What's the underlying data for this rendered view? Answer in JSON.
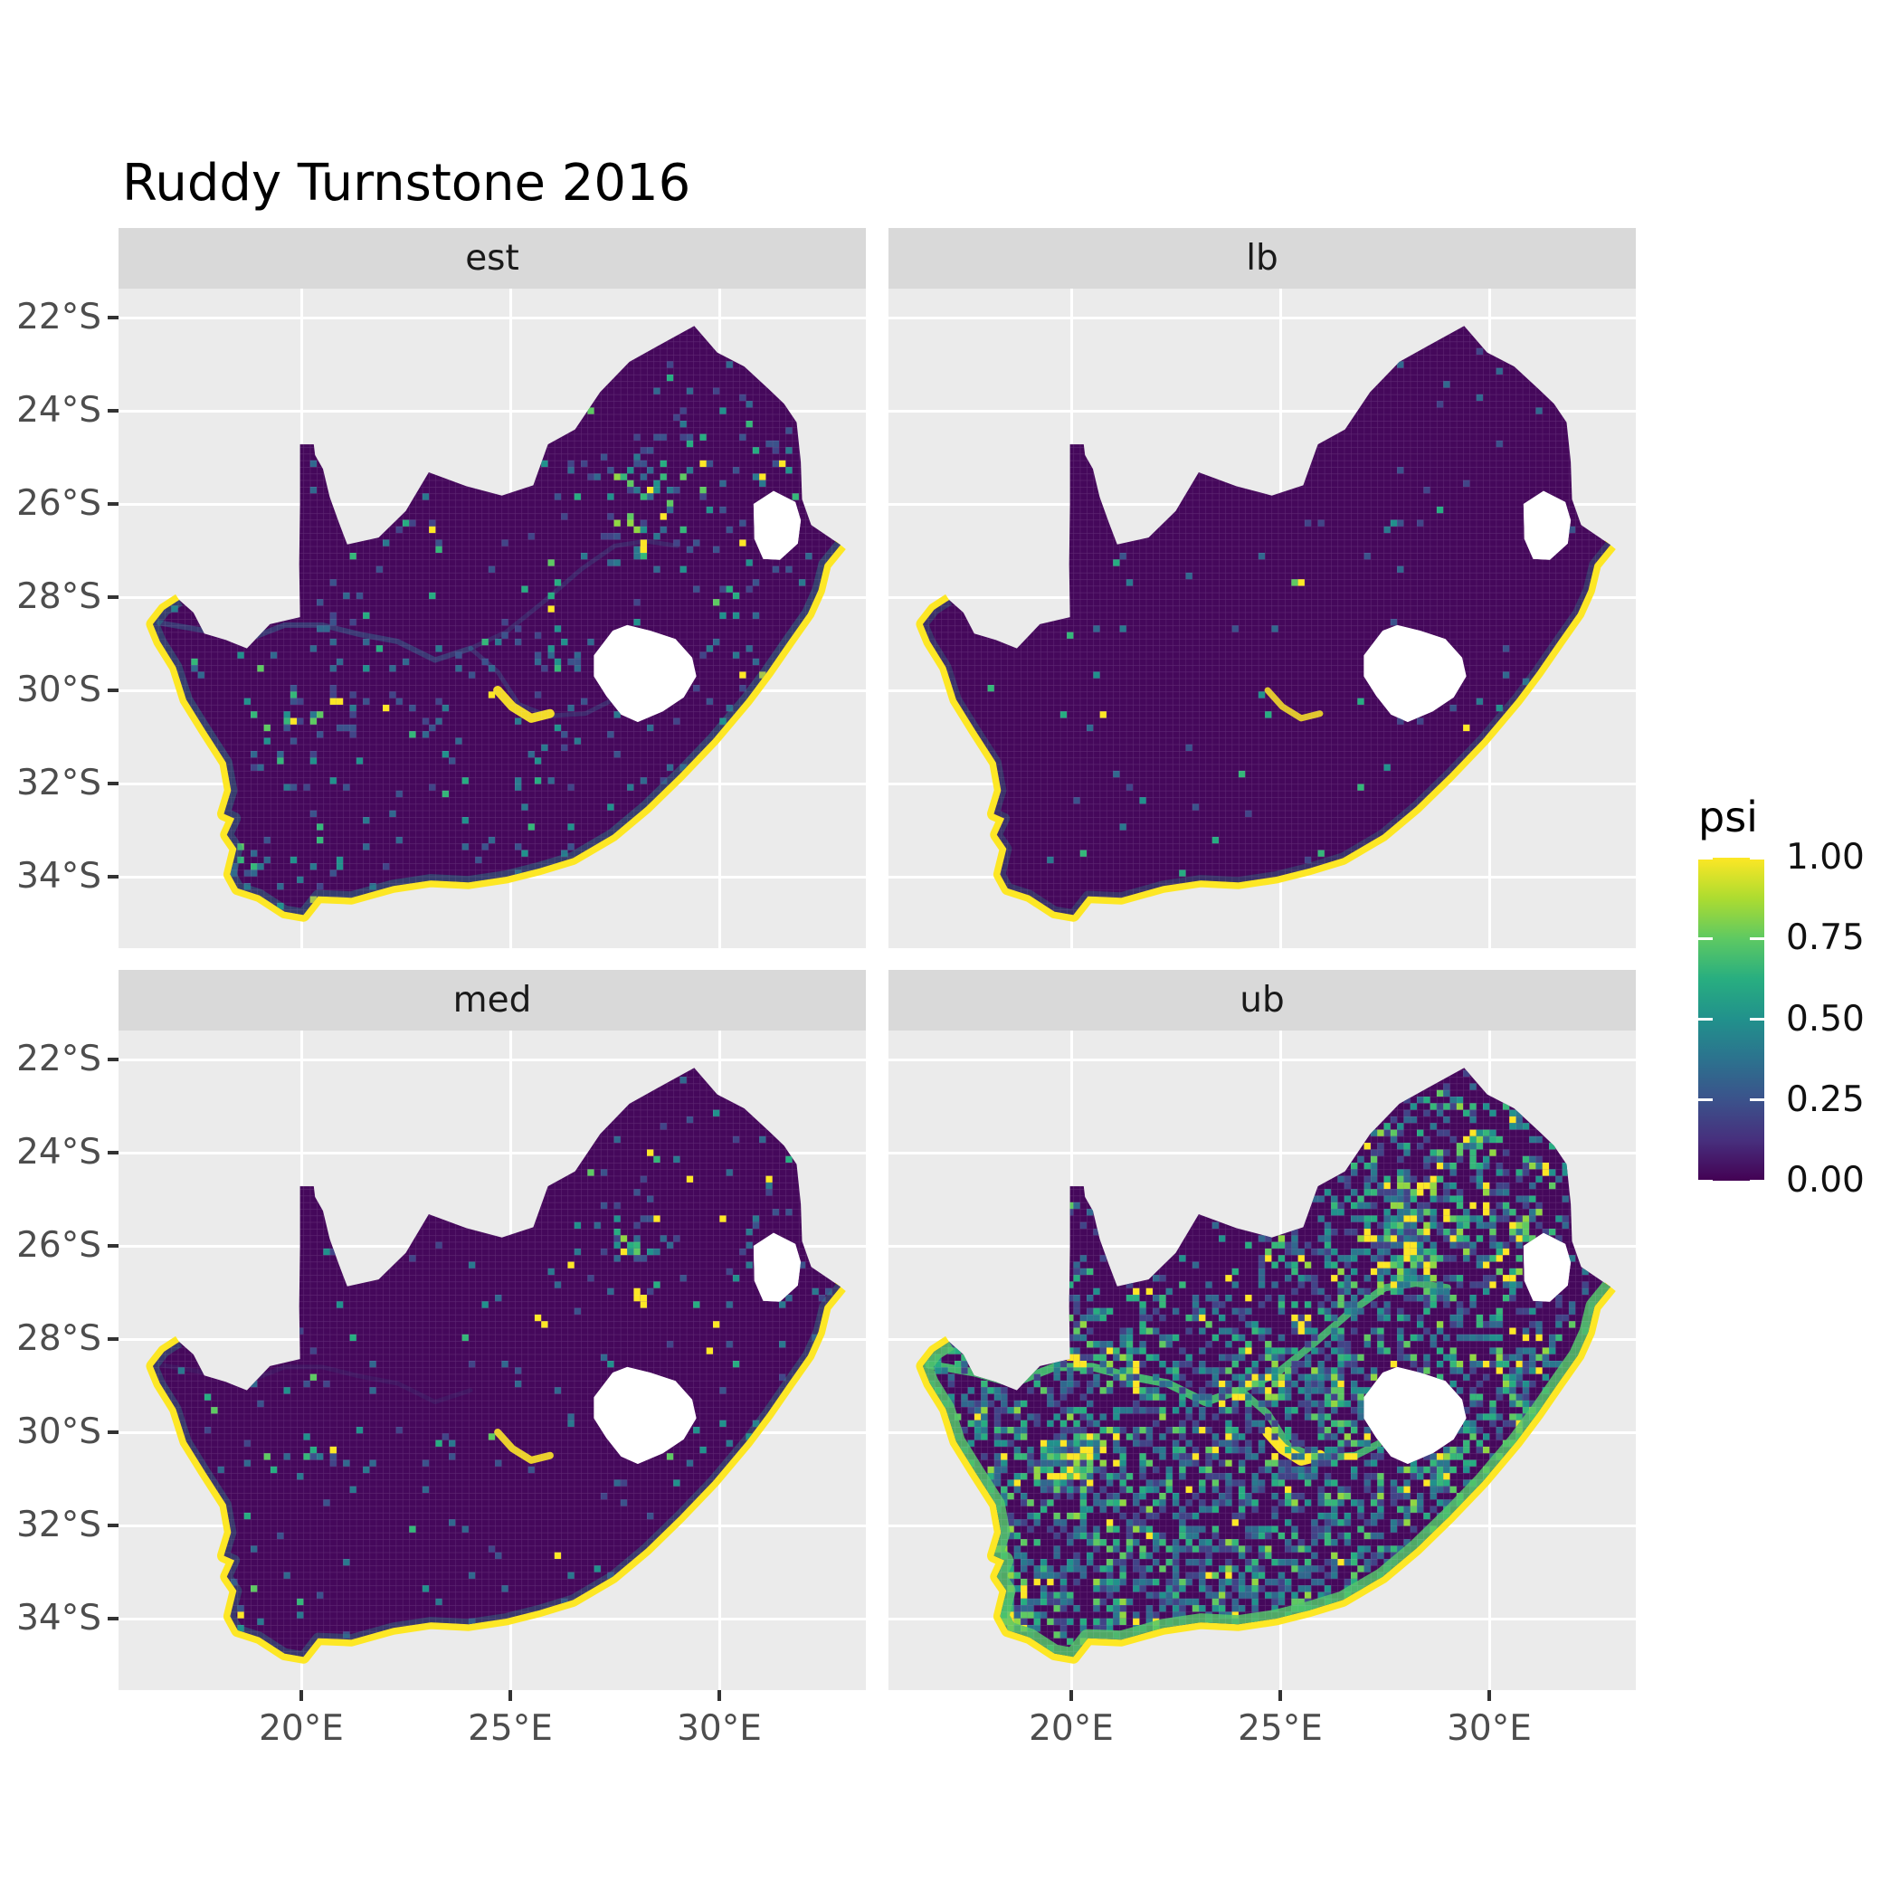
{
  "chart_data": {
    "type": "heatmap",
    "title": "Ruddy Turnstone 2016",
    "subtitle": "",
    "facets": [
      "est",
      "lb",
      "med",
      "ub"
    ],
    "variable": "psi",
    "scale": {
      "name": "viridis",
      "limits": [
        0,
        1
      ],
      "breaks": [
        1.0,
        0.75,
        0.5,
        0.25,
        0.0
      ],
      "break_labels": [
        "1.00",
        "0.75",
        "0.50",
        "0.25",
        "0.00"
      ],
      "legend_position": "right"
    },
    "x_axis": {
      "label": "",
      "tick_labels": [
        "20°E",
        "25°E",
        "30°E"
      ],
      "tick_values_deg_east": [
        20,
        25,
        30
      ],
      "range_deg_east": [
        15.63,
        33.5
      ]
    },
    "y_axis": {
      "label": "",
      "tick_labels": [
        "22°S",
        "24°S",
        "26°S",
        "28°S",
        "30°S",
        "32°S",
        "34°S"
      ],
      "tick_values_deg_south": [
        22,
        24,
        26,
        28,
        30,
        32,
        34
      ],
      "range_deg_south": [
        21.38,
        35.53
      ]
    },
    "grid": "major white gridlines on gray panels",
    "facet_summary": {
      "est": "mostly psi≈0 (dark purple) with scattered low-mid values, hotspots near Gauteng, Calvinia, coasts; yellow (psi≈1) coastline",
      "lb": "lower bound: almost entirely psi≈0, yellow coastline, very few nonzero cells",
      "med": "median: mostly psi≈0, sparse scattered cells, small yellow clusters in northeast, yellow coastline",
      "ub": "upper bound: dense scattered low-mid psi over most of country, bright river traces (Orange/Vaal), many yellow patches, yellow coastline"
    }
  },
  "ui": {
    "title": "Ruddy Turnstone 2016",
    "strip_labels": [
      "est",
      "lb",
      "med",
      "ub"
    ],
    "legend_title": "psi",
    "legend_labels": [
      "1.00",
      "0.75",
      "0.50",
      "0.25",
      "0.00"
    ],
    "legend_values": [
      1,
      0.75,
      0.5,
      0.25,
      0
    ],
    "y_tick_labels": [
      "22°S",
      "24°S",
      "26°S",
      "28°S",
      "30°S",
      "32°S",
      "34°S"
    ],
    "x_tick_labels": [
      "20°E",
      "25°E",
      "30°E"
    ]
  },
  "colors": {
    "background": "#ffffff",
    "panel_bg": "#ebebeb",
    "strip_bg": "#d9d9d9",
    "strip_text": "#1a1a1a",
    "gridline": "#ffffff",
    "axis_text": "#4d4d4d",
    "tick_mark": "#333333",
    "map_base": "#45085b",
    "coast": "#fde725",
    "hole_fill": "#ffffff",
    "cell_grid": "rgba(228,212,240,0.16)",
    "viridis_stops": [
      "#440154",
      "#3b528b",
      "#21918c",
      "#5ec962",
      "#fde725"
    ]
  },
  "palettes": {
    "std": [
      [
        "#414487",
        0.22
      ],
      [
        "#3b528b",
        0.2
      ],
      [
        "#31688e",
        0.2
      ],
      [
        "#2a788e",
        0.12
      ],
      [
        "#21918c",
        0.1
      ],
      [
        "#27ad81",
        0.06
      ],
      [
        "#35b779",
        0.05
      ],
      [
        "#5ec962",
        0.03
      ],
      [
        "#fde725",
        0.02
      ]
    ],
    "ub": [
      [
        "#414487",
        0.25
      ],
      [
        "#31688e",
        0.22
      ],
      [
        "#2a788e",
        0.16
      ],
      [
        "#21918c",
        0.12
      ],
      [
        "#27ad81",
        0.08
      ],
      [
        "#35b779",
        0.07
      ],
      [
        "#5ec962",
        0.04
      ],
      [
        "#90d743",
        0.03
      ],
      [
        "#fde725",
        0.03
      ]
    ],
    "hot": [
      [
        "#fde725",
        0.35
      ],
      [
        "#90d743",
        0.15
      ],
      [
        "#5ec962",
        0.2
      ],
      [
        "#35b779",
        0.2
      ],
      [
        "#21918c",
        0.1
      ]
    ]
  },
  "map": {
    "outline": [
      [
        17.08,
        -28.06
      ],
      [
        16.72,
        -28.27
      ],
      [
        16.45,
        -28.58
      ],
      [
        16.62,
        -28.95
      ],
      [
        17.0,
        -29.5
      ],
      [
        17.25,
        -30.2
      ],
      [
        17.7,
        -30.85
      ],
      [
        18.2,
        -31.55
      ],
      [
        18.32,
        -32.15
      ],
      [
        18.15,
        -32.65
      ],
      [
        18.4,
        -32.75
      ],
      [
        18.22,
        -33.1
      ],
      [
        18.45,
        -33.4
      ],
      [
        18.3,
        -33.95
      ],
      [
        18.48,
        -34.25
      ],
      [
        19.0,
        -34.4
      ],
      [
        19.6,
        -34.75
      ],
      [
        20.05,
        -34.82
      ],
      [
        20.4,
        -34.42
      ],
      [
        21.2,
        -34.45
      ],
      [
        22.2,
        -34.2
      ],
      [
        23.1,
        -34.08
      ],
      [
        24.0,
        -34.12
      ],
      [
        24.9,
        -34.0
      ],
      [
        25.7,
        -33.82
      ],
      [
        26.5,
        -33.6
      ],
      [
        27.45,
        -33.1
      ],
      [
        28.25,
        -32.5
      ],
      [
        29.05,
        -31.8
      ],
      [
        29.85,
        -31.05
      ],
      [
        30.65,
        -30.2
      ],
      [
        31.15,
        -29.6
      ],
      [
        31.65,
        -28.95
      ],
      [
        32.12,
        -28.35
      ],
      [
        32.37,
        -27.85
      ],
      [
        32.52,
        -27.3
      ],
      [
        32.9,
        -26.88
      ],
      [
        32.2,
        -26.45
      ],
      [
        31.98,
        -25.9
      ],
      [
        31.95,
        -25.1
      ],
      [
        31.85,
        -24.25
      ],
      [
        31.55,
        -23.85
      ],
      [
        31.2,
        -23.55
      ],
      [
        30.6,
        -23.05
      ],
      [
        29.95,
        -22.75
      ],
      [
        29.4,
        -22.18
      ],
      [
        28.55,
        -22.6
      ],
      [
        27.85,
        -22.95
      ],
      [
        27.15,
        -23.6
      ],
      [
        26.55,
        -24.4
      ],
      [
        25.9,
        -24.72
      ],
      [
        25.55,
        -25.6
      ],
      [
        24.8,
        -25.82
      ],
      [
        23.95,
        -25.62
      ],
      [
        23.05,
        -25.32
      ],
      [
        22.5,
        -26.15
      ],
      [
        21.85,
        -26.72
      ],
      [
        21.1,
        -26.87
      ],
      [
        20.9,
        -26.4
      ],
      [
        20.68,
        -25.85
      ],
      [
        20.52,
        -25.25
      ],
      [
        20.33,
        -24.95
      ],
      [
        20.3,
        -24.72
      ],
      [
        19.97,
        -24.72
      ],
      [
        19.97,
        -26.0
      ],
      [
        19.95,
        -27.3
      ],
      [
        19.97,
        -28.43
      ],
      [
        19.25,
        -28.58
      ],
      [
        18.7,
        -29.1
      ],
      [
        18.2,
        -28.92
      ],
      [
        17.68,
        -28.78
      ],
      [
        17.42,
        -28.33
      ]
    ],
    "coast_end_index": 36,
    "holes": {
      "lesotho": [
        [
          27.0,
          -29.25
        ],
        [
          27.45,
          -28.72
        ],
        [
          27.8,
          -28.6
        ],
        [
          28.35,
          -28.72
        ],
        [
          28.95,
          -28.9
        ],
        [
          29.35,
          -29.3
        ],
        [
          29.45,
          -29.7
        ],
        [
          29.15,
          -30.15
        ],
        [
          28.65,
          -30.45
        ],
        [
          28.05,
          -30.68
        ],
        [
          27.65,
          -30.52
        ],
        [
          27.3,
          -30.12
        ],
        [
          27.0,
          -29.7
        ]
      ],
      "eswatini": [
        [
          30.82,
          -26.0
        ],
        [
          31.3,
          -25.72
        ],
        [
          31.82,
          -25.96
        ],
        [
          31.95,
          -26.35
        ],
        [
          31.88,
          -26.85
        ],
        [
          31.45,
          -27.2
        ],
        [
          31.05,
          -27.18
        ],
        [
          30.84,
          -26.75
        ]
      ]
    },
    "rivers": {
      "west": [
        [
          16.6,
          -28.55
        ],
        [
          17.7,
          -28.72
        ],
        [
          18.6,
          -28.95
        ],
        [
          19.6,
          -28.6
        ],
        [
          20.5,
          -28.6
        ],
        [
          21.4,
          -28.8
        ],
        [
          22.3,
          -28.95
        ],
        [
          23.2,
          -29.35
        ],
        [
          24.05,
          -29.1
        ]
      ],
      "vaal": [
        [
          24.05,
          -29.1
        ],
        [
          24.9,
          -28.75
        ],
        [
          25.8,
          -28.1
        ],
        [
          26.7,
          -27.4
        ],
        [
          27.5,
          -26.9
        ],
        [
          28.25,
          -26.8
        ],
        [
          29.0,
          -26.9
        ]
      ],
      "upper": [
        [
          24.05,
          -29.1
        ],
        [
          24.7,
          -29.6
        ],
        [
          25.2,
          -30.3
        ],
        [
          25.9,
          -30.55
        ],
        [
          26.8,
          -30.5
        ],
        [
          27.35,
          -30.25
        ]
      ],
      "dam": [
        [
          24.7,
          -30.0
        ],
        [
          25.05,
          -30.35
        ],
        [
          25.5,
          -30.6
        ],
        [
          25.95,
          -30.5
        ]
      ]
    },
    "hotspots": [
      [
        28.0,
        -26.1,
        0.8,
        0.3
      ],
      [
        27.55,
        -25.65,
        0.5,
        0.18
      ],
      [
        29.2,
        -25.5,
        0.45,
        0.15
      ],
      [
        29.6,
        -23.9,
        0.4,
        0.15
      ],
      [
        30.95,
        -29.85,
        0.5,
        0.22
      ],
      [
        30.3,
        -28.4,
        0.5,
        0.15
      ],
      [
        18.55,
        -33.85,
        0.5,
        0.25
      ],
      [
        19.8,
        -30.55,
        0.55,
        0.25
      ],
      [
        25.6,
        -33.85,
        0.45,
        0.18
      ],
      [
        24.75,
        -28.75,
        0.45,
        0.15
      ],
      [
        26.25,
        -29.15,
        0.45,
        0.15
      ],
      [
        21.25,
        -28.45,
        0.4,
        0.15
      ],
      [
        28.4,
        -24.6,
        0.5,
        0.12
      ],
      [
        31.0,
        -25.3,
        0.45,
        0.15
      ],
      [
        28.7,
        -30.7,
        0.5,
        0.15
      ],
      [
        23.2,
        -30.6,
        0.4,
        0.12
      ],
      [
        20.3,
        -30.4,
        0.4,
        0.18
      ],
      [
        30.3,
        -26.5,
        0.5,
        0.12
      ]
    ]
  },
  "facet_params": [
    {
      "id": "est",
      "seed": 11,
      "base": 0.045,
      "hot": 1.0,
      "palette": "std",
      "regions": [
        {
          "lonMax": 24.5,
          "latMin": -27.0,
          "m": 0.5
        }
      ],
      "rivers": [
        {
          "k": "west",
          "c": "#31688e",
          "w": 6,
          "a": 0.5
        },
        {
          "k": "vaal",
          "c": "#31688e",
          "w": 5,
          "a": 0.3
        },
        {
          "k": "upper",
          "c": "#31688e",
          "w": 5,
          "a": 0.35
        },
        {
          "k": "dam",
          "c": "#fde725",
          "w": 10,
          "a": 0.95
        }
      ],
      "coastInner": {
        "c": "#21918c",
        "w": 7,
        "a": 0.4
      },
      "spots": [
        [
          28.05,
          -26.95,
          4
        ],
        [
          20.72,
          -30.28,
          2
        ],
        [
          28.8,
          -26.4,
          1
        ],
        [
          29.9,
          -28.2,
          1
        ],
        [
          24.4,
          -30.05,
          1
        ],
        [
          26.0,
          -28.3,
          1
        ],
        [
          31.6,
          -25.1,
          1
        ],
        [
          27.0,
          -24.0,
          1
        ],
        [
          29.5,
          -25.0,
          1
        ]
      ]
    },
    {
      "id": "lb",
      "seed": 22,
      "base": 0.01,
      "hot": 0.1,
      "palette": "std",
      "regions": [
        {
          "lonMax": 24.5,
          "latMin": -27.0,
          "m": 0.5
        }
      ],
      "rivers": [
        {
          "k": "dam",
          "c": "#fde725",
          "w": 7,
          "a": 0.85
        }
      ],
      "coastInner": {
        "c": "#21918c",
        "w": 6,
        "a": 0.3
      },
      "spots": [
        [
          25.45,
          -27.55,
          2
        ],
        [
          20.9,
          -30.5,
          1
        ]
      ]
    },
    {
      "id": "med",
      "seed": 33,
      "base": 0.024,
      "hot": 0.5,
      "palette": "std",
      "regions": [
        {
          "lonMax": 24.5,
          "latMin": -27.0,
          "m": 0.5
        }
      ],
      "rivers": [
        {
          "k": "west",
          "c": "#31688e",
          "w": 5,
          "a": 0.15
        },
        {
          "k": "dam",
          "c": "#fde725",
          "w": 8,
          "a": 0.9
        }
      ],
      "coastInner": {
        "c": "#21918c",
        "w": 6,
        "a": 0.35
      },
      "spots": [
        [
          27.95,
          -27.0,
          4
        ],
        [
          25.6,
          -27.6,
          2
        ],
        [
          27.7,
          -26.1,
          1
        ],
        [
          28.6,
          -25.3,
          1
        ],
        [
          29.3,
          -24.5,
          1
        ],
        [
          28.2,
          -24.0,
          1
        ],
        [
          30.0,
          -25.3,
          1
        ],
        [
          26.5,
          -26.5,
          1
        ],
        [
          20.7,
          -30.28,
          2
        ],
        [
          24.4,
          -30.0,
          1
        ],
        [
          29.9,
          -28.2,
          1
        ],
        [
          31.2,
          -24.5,
          1
        ]
      ]
    },
    {
      "id": "ub",
      "seed": 44,
      "base": 0.34,
      "hot": 1.9,
      "palette": "ub",
      "regions": [
        {
          "latMax": -28.2,
          "m": 1.35
        },
        {
          "lonMax": 24.5,
          "latMin": -27.0,
          "m": 0.4
        }
      ],
      "rivers": [
        {
          "k": "west",
          "c": "#44bf70",
          "w": 9,
          "a": 0.95
        },
        {
          "k": "vaal",
          "c": "#44bf70",
          "w": 8,
          "a": 0.9
        },
        {
          "k": "upper",
          "c": "#44bf70",
          "w": 8,
          "a": 0.9
        },
        {
          "k": "dam",
          "c": "#fde725",
          "w": 12,
          "a": 1.0
        }
      ],
      "coastInner": {
        "c": "#52c569",
        "w": 10,
        "a": 0.85
      },
      "spots": [
        [
          20.1,
          -28.5,
          3
        ],
        [
          24.05,
          -29.1,
          3
        ],
        [
          26.7,
          -30.5,
          3
        ],
        [
          28.0,
          -26.0,
          4
        ],
        [
          28.5,
          -26.4,
          3
        ],
        [
          20.3,
          -30.45,
          4
        ],
        [
          21.0,
          -30.05,
          2
        ],
        [
          24.85,
          -30.6,
          3
        ],
        [
          29.9,
          -25.2,
          2
        ],
        [
          30.6,
          -25.65,
          2
        ],
        [
          19.0,
          -31.5,
          2
        ],
        [
          23.3,
          -33.2,
          2
        ],
        [
          29.3,
          -23.8,
          2
        ],
        [
          31.3,
          -24.3,
          2
        ],
        [
          27.0,
          -23.8,
          2
        ],
        [
          21.6,
          -26.85,
          2
        ],
        [
          30.9,
          -28.1,
          2
        ],
        [
          25.5,
          -27.6,
          3
        ]
      ]
    }
  ]
}
